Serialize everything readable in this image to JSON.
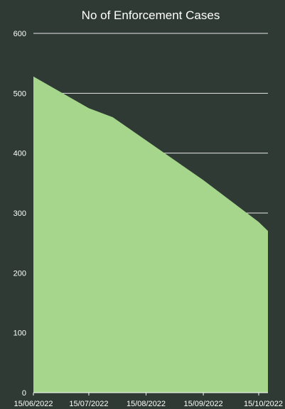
{
  "chart_data": {
    "type": "area",
    "title": "No of Enforcement Cases",
    "xlabel": "",
    "ylabel": "",
    "x": [
      "2022-06-15",
      "2022-07-15",
      "2022-07-28",
      "2022-09-15",
      "2022-10-15",
      "2022-10-20"
    ],
    "values": [
      528,
      475,
      460,
      355,
      285,
      270
    ],
    "ylim": [
      0,
      600
    ],
    "yticks": [
      0,
      100,
      200,
      300,
      400,
      500,
      600
    ],
    "xticks": [
      "15/06/2022",
      "15/07/2022",
      "15/08/2022",
      "15/09/2022",
      "15/10/2022"
    ],
    "x_range": [
      "2022-06-15",
      "2022-10-20"
    ],
    "grid": true,
    "legend": "none",
    "colors": {
      "fill": "#a5d68b",
      "grid": "#e8e8e8",
      "text": "#ffffff",
      "background": "#2e3a33"
    }
  }
}
